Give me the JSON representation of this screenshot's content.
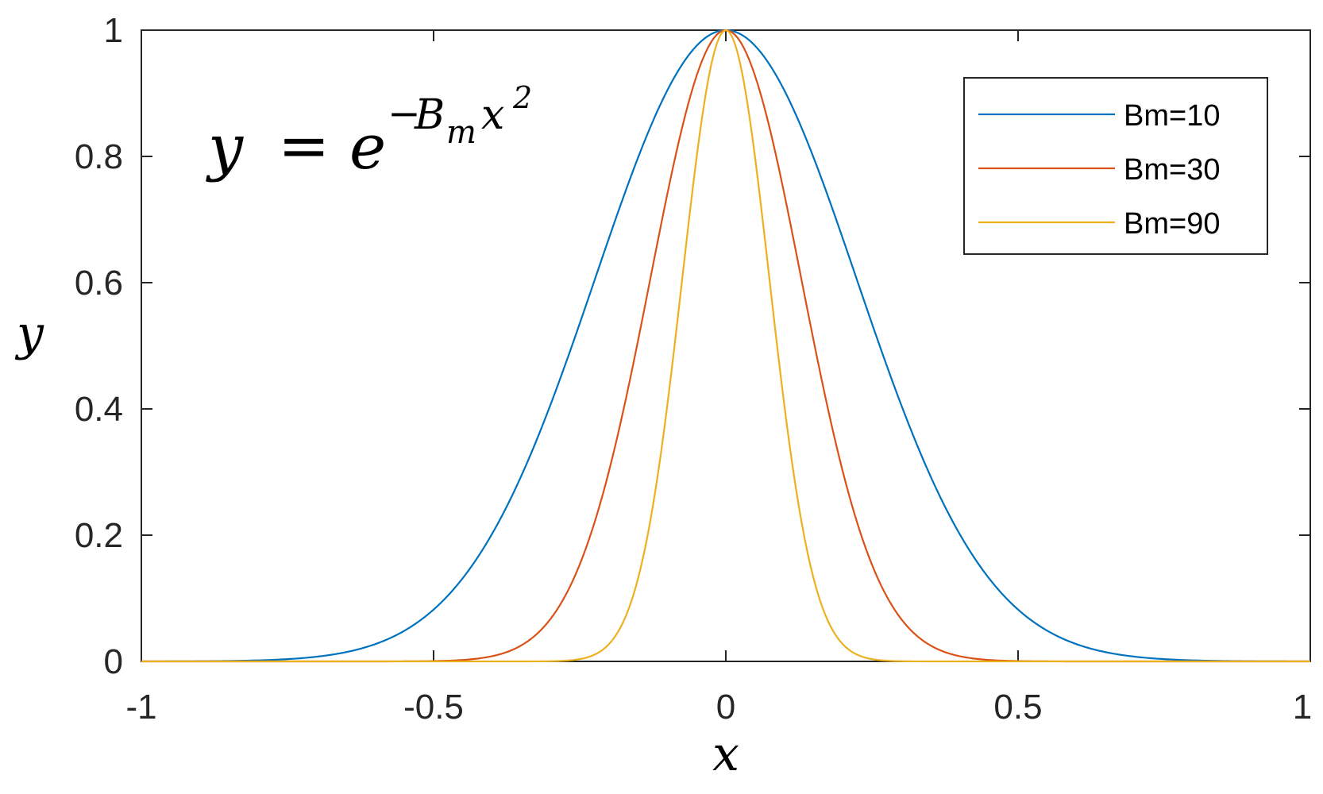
{
  "chart_data": {
    "type": "line",
    "function": "exp(-Bm*x^2)",
    "x_range": [
      -1,
      1
    ],
    "xlim": [
      -1,
      1
    ],
    "ylim": [
      0,
      1
    ],
    "xticks": [
      -1,
      -0.5,
      0,
      0.5,
      1
    ],
    "xtick_labels": [
      "-1",
      "-0.5",
      "0",
      "0.5",
      "1"
    ],
    "yticks": [
      0,
      0.2,
      0.4,
      0.6,
      0.8,
      1
    ],
    "ytick_labels": [
      "0",
      "0.2",
      "0.4",
      "0.6",
      "0.8",
      "1"
    ],
    "xlabel": "x",
    "ylabel": "y",
    "annotation": {
      "lhs": "y",
      "equals": "=",
      "base": "e",
      "exponent_sign": "−",
      "exponent_B": "B",
      "exponent_m": "m",
      "exponent_x": "x",
      "exponent_power": "2"
    },
    "legend_position": "top-right",
    "grid": false,
    "series": [
      {
        "name": "Bm=10",
        "Bm": 10,
        "color": "#0072BD"
      },
      {
        "name": "Bm=30",
        "Bm": 30,
        "color": "#D95319"
      },
      {
        "name": "Bm=90",
        "Bm": 90,
        "color": "#EDB120"
      }
    ]
  }
}
